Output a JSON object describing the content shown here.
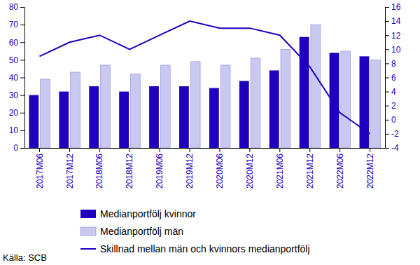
{
  "chart_data": {
    "type": "bar",
    "categories": [
      "2017M06",
      "2017M12",
      "2018M06",
      "2018M12",
      "2019M06",
      "2019M12",
      "2020M06",
      "2020M12",
      "2021M06",
      "2021M12",
      "2022M06",
      "2022M12"
    ],
    "series": [
      {
        "name": "Medianportfölj kvinnor",
        "type": "bar",
        "color": "#1e00be",
        "values": [
          30,
          32,
          35,
          32,
          35,
          35,
          34,
          38,
          44,
          63,
          54,
          52
        ]
      },
      {
        "name": "Medianportfölj män",
        "type": "bar",
        "color": "#c8c8f0",
        "values": [
          39,
          43,
          47,
          42,
          47,
          49,
          47,
          51,
          56,
          70,
          55,
          50
        ]
      },
      {
        "name": "Skillnad mellan män och kvinnors medianportfölj",
        "type": "line",
        "axis": "y2",
        "color": "#1e00be",
        "values": [
          9,
          11,
          12,
          10,
          12,
          14,
          13,
          13,
          12,
          7.5,
          1,
          -2
        ]
      }
    ],
    "ylim": [
      0,
      80
    ],
    "yticks": [
      0,
      10,
      20,
      30,
      40,
      50,
      60,
      70,
      80
    ],
    "y2lim": [
      -4,
      16
    ],
    "y2ticks": [
      -4,
      -2,
      0,
      2,
      4,
      6,
      8,
      10,
      12,
      14,
      16
    ],
    "grid": false,
    "legend": "bottom",
    "source": "Källa: SCB"
  }
}
